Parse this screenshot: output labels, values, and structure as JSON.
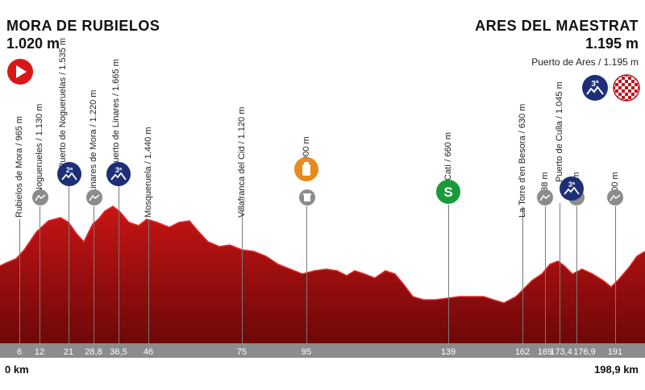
{
  "start": {
    "name": "MORA DE RUBIELOS",
    "altitude": "1.020 m"
  },
  "finish": {
    "name": "ARES DEL MAESTRAT",
    "altitude": "1.195 m",
    "climb_label": "Puerto de Ares / 1.195 m",
    "climb_category": "3ª"
  },
  "colors": {
    "profile": "#b01010",
    "profile_dark": "#7a0c0c",
    "category_badge": "#1e2f78",
    "start_badge": "#d81818",
    "sprint_badge": "#1a9a3a",
    "feed_badge": "#e88a1c",
    "marker_grey": "#8c8c8c"
  },
  "waypoints": [
    {
      "label": "Rubielos de Mora / 965 m",
      "km": "6",
      "icon": "none"
    },
    {
      "label": "Noguerueles / 1.130 m",
      "km": "12",
      "icon": "climb-marker-icon"
    },
    {
      "label": "Puerto de Nogueruelas / 1.535 m",
      "km": "21",
      "icon": "category-2-icon",
      "category": "2ª"
    },
    {
      "label": "Linares de Mora / 1.220 m",
      "km": "28,8",
      "icon": "climb-marker-icon"
    },
    {
      "label": "Puerto de Linares / 1.665 m",
      "km": "36,5",
      "icon": "category-3-icon",
      "category": "3ª"
    },
    {
      "label": "Mosqueruela / 1.440 m",
      "km": "46",
      "icon": "none"
    },
    {
      "label": "Villafranca del Cid / 1.120 m",
      "km": "75",
      "icon": "none"
    },
    {
      "label": "900 m",
      "km": "95",
      "icon": "feed-zone-icon"
    },
    {
      "label": "Catí / 660 m",
      "km": "139",
      "icon": "sprint-icon",
      "category": "S"
    },
    {
      "label": "La Torre d'en Besora / 630 m",
      "km": "162",
      "icon": "none"
    },
    {
      "label": "788 m",
      "km": "169",
      "icon": "climb-marker-icon"
    },
    {
      "label": "Puerto de Culla / 1.045 m",
      "km": "173,4",
      "icon": "category-3-icon",
      "category": "3ª"
    },
    {
      "label": "940 m",
      "km": "176,9",
      "icon": "climb-marker-icon"
    },
    {
      "label": "800 m",
      "km": "191",
      "icon": "climb-marker-icon"
    }
  ],
  "distance": {
    "start": "0 km",
    "end": "198,9 km"
  }
}
